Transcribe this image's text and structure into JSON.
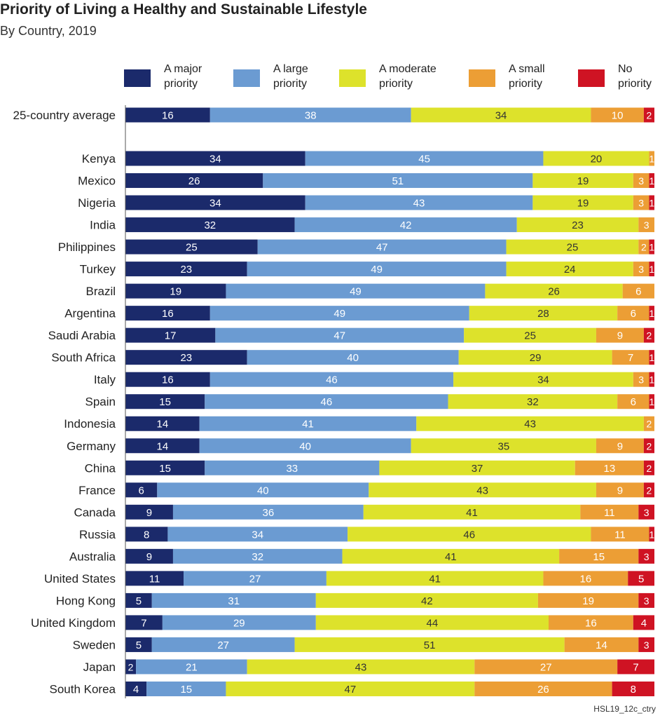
{
  "colors": {
    "major": "#1b2a6b",
    "large": "#6b9bd2",
    "moderate": "#dde22b",
    "small": "#ec9e35",
    "none": "#cf1323"
  },
  "chart_data": {
    "type": "bar",
    "orientation": "horizontal",
    "stacked": true,
    "title": "Priority of Living a Healthy and Sustainable Lifestyle",
    "subtitle": "By Country, 2019",
    "source_note": "HSL19_12c_ctry",
    "legend": [
      {
        "key": "major",
        "line1": "A major",
        "line2": "priority"
      },
      {
        "key": "large",
        "line1": "A large",
        "line2": "priority"
      },
      {
        "key": "moderate",
        "line1": "A moderate",
        "line2": "priority"
      },
      {
        "key": "small",
        "line1": "A small",
        "line2": "priority"
      },
      {
        "key": "none",
        "line1": "No",
        "line2": "priority"
      }
    ],
    "series_keys": [
      "major",
      "large",
      "moderate",
      "small",
      "none"
    ],
    "average": {
      "name": "25-country average",
      "values": [
        16,
        38,
        34,
        10,
        2
      ]
    },
    "rows": [
      {
        "name": "Kenya",
        "values": [
          34,
          45,
          20,
          1,
          0
        ]
      },
      {
        "name": "Mexico",
        "values": [
          26,
          51,
          19,
          3,
          1
        ]
      },
      {
        "name": "Nigeria",
        "values": [
          34,
          43,
          19,
          3,
          1
        ]
      },
      {
        "name": "India",
        "values": [
          32,
          42,
          23,
          3,
          0
        ]
      },
      {
        "name": "Philippines",
        "values": [
          25,
          47,
          25,
          2,
          1
        ]
      },
      {
        "name": "Turkey",
        "values": [
          23,
          49,
          24,
          3,
          1
        ]
      },
      {
        "name": "Brazil",
        "values": [
          19,
          49,
          26,
          6,
          0
        ]
      },
      {
        "name": "Argentina",
        "values": [
          16,
          49,
          28,
          6,
          1
        ]
      },
      {
        "name": "Saudi Arabia",
        "values": [
          17,
          47,
          25,
          9,
          2
        ]
      },
      {
        "name": "South Africa",
        "values": [
          23,
          40,
          29,
          7,
          1
        ]
      },
      {
        "name": "Italy",
        "values": [
          16,
          46,
          34,
          3,
          1
        ]
      },
      {
        "name": "Spain",
        "values": [
          15,
          46,
          32,
          6,
          1
        ]
      },
      {
        "name": "Indonesia",
        "values": [
          14,
          41,
          43,
          2,
          0
        ]
      },
      {
        "name": "Germany",
        "values": [
          14,
          40,
          35,
          9,
          2
        ]
      },
      {
        "name": "China",
        "values": [
          15,
          33,
          37,
          13,
          2
        ]
      },
      {
        "name": "France",
        "values": [
          6,
          40,
          43,
          9,
          2
        ]
      },
      {
        "name": "Canada",
        "values": [
          9,
          36,
          41,
          11,
          3
        ]
      },
      {
        "name": "Russia",
        "values": [
          8,
          34,
          46,
          11,
          1
        ]
      },
      {
        "name": "Australia",
        "values": [
          9,
          32,
          41,
          15,
          3
        ]
      },
      {
        "name": "United States",
        "values": [
          11,
          27,
          41,
          16,
          5
        ]
      },
      {
        "name": "Hong Kong",
        "values": [
          5,
          31,
          42,
          19,
          3
        ]
      },
      {
        "name": "United Kingdom",
        "values": [
          7,
          29,
          44,
          16,
          4
        ]
      },
      {
        "name": "Sweden",
        "values": [
          5,
          27,
          51,
          14,
          3
        ]
      },
      {
        "name": "Japan",
        "values": [
          2,
          21,
          43,
          27,
          7
        ]
      },
      {
        "name": "South Korea",
        "values": [
          4,
          15,
          47,
          26,
          8
        ]
      }
    ]
  }
}
